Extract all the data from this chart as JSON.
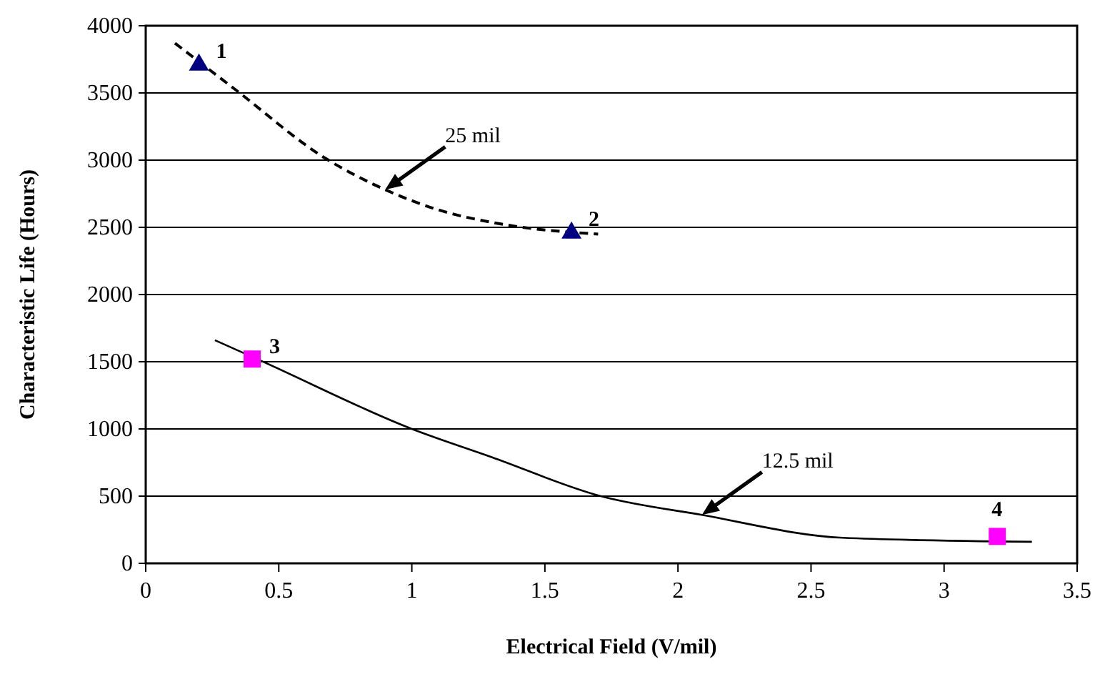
{
  "chart_data": {
    "type": "scatter",
    "xlabel": "Electrical Field (V/mil)",
    "ylabel": "Characteristic Life (Hours)",
    "xlim": [
      0,
      3.5
    ],
    "xticks": [
      0,
      0.5,
      1,
      1.5,
      2,
      2.5,
      3,
      3.5
    ],
    "ylim": [
      0,
      4000
    ],
    "yticks": [
      0,
      500,
      1000,
      1500,
      2000,
      2500,
      3000,
      3500,
      4000
    ],
    "grid": "y",
    "legend": false,
    "series": [
      {
        "type": "line",
        "name": "25 mil",
        "color": "#000000",
        "line_style": "dashed",
        "marker": "none",
        "x": [
          0.11,
          0.34,
          0.67,
          0.9,
          1.1,
          1.35,
          1.7
        ],
        "values": [
          3870,
          3520,
          3020,
          2780,
          2630,
          2520,
          2450
        ]
      },
      {
        "type": "line",
        "name": "12.5 mil",
        "color": "#000000",
        "line_style": "solid",
        "marker": "none",
        "x": [
          0.26,
          0.43,
          1.0,
          1.3,
          1.71,
          2.09,
          2.62,
          3.33
        ],
        "values": [
          1660,
          1510,
          1000,
          790,
          500,
          360,
          190,
          160
        ]
      },
      {
        "color": "#000080",
        "marker": "triangle",
        "x": [
          0.2,
          1.6
        ],
        "values": [
          3720,
          2470
        ]
      },
      {
        "color": "#ff00ff",
        "marker": "square",
        "x": [
          0.4,
          3.2
        ],
        "values": [
          1520,
          200
        ]
      }
    ],
    "annotations": [
      {
        "text": "1",
        "x": 0.2,
        "y": 3720
      },
      {
        "text": "2",
        "x": 1.6,
        "y": 2470
      },
      {
        "text": "3",
        "x": 0.4,
        "y": 1520
      },
      {
        "text": "4",
        "x": 3.2,
        "y": 200
      }
    ]
  }
}
